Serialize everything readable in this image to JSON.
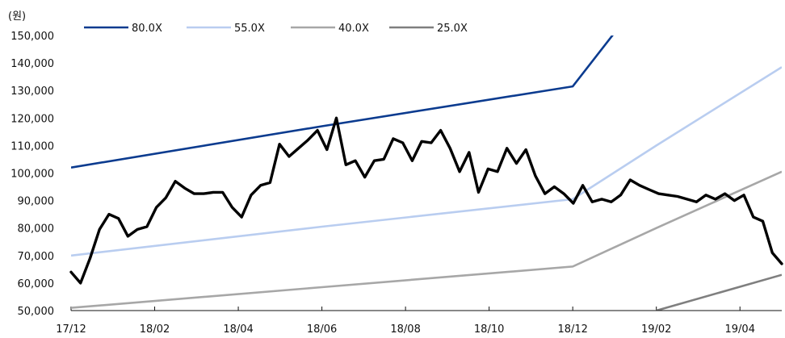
{
  "chart_data": {
    "type": "line",
    "ylabel": "(원)",
    "ylim": [
      50000,
      150000
    ],
    "yticks": [
      "50,000",
      "60,000",
      "70,000",
      "80,000",
      "90,000",
      "100,000",
      "110,000",
      "120,000",
      "130,000",
      "140,000",
      "150,000"
    ],
    "xticks": [
      "17/12",
      "18/02",
      "18/04",
      "18/06",
      "18/08",
      "18/10",
      "18/12",
      "19/02",
      "19/04"
    ],
    "legend_position": "top",
    "series": [
      {
        "name": "80.0X",
        "color": "#0b3b8f",
        "points": [
          [
            "17/12",
            102000
          ],
          [
            "18/06",
            117000
          ],
          [
            "18/12",
            131500
          ],
          [
            "19/01",
            151000
          ]
        ]
      },
      {
        "name": "55.0X",
        "color": "#b9cdf0",
        "points": [
          [
            "17/12",
            70000
          ],
          [
            "18/06",
            80500
          ],
          [
            "18/12",
            90500
          ],
          [
            "19/02",
            110000
          ],
          [
            "19/05",
            138500
          ]
        ]
      },
      {
        "name": "40.0X",
        "color": "#a7a7a7",
        "points": [
          [
            "17/12",
            51000
          ],
          [
            "18/06",
            58500
          ],
          [
            "18/12",
            66000
          ],
          [
            "19/02",
            80000
          ],
          [
            "19/05",
            100500
          ]
        ]
      },
      {
        "name": "25.0X",
        "color": "#7f7f7f",
        "points": [
          [
            "19/02",
            50000
          ],
          [
            "19/05",
            63000
          ]
        ]
      }
    ],
    "price_series": {
      "color": "#000000",
      "x_start": "17/12",
      "x_end": "19/05",
      "values": [
        64000,
        60000,
        69000,
        79500,
        85000,
        83500,
        77000,
        79500,
        80500,
        87500,
        91000,
        97000,
        94500,
        92500,
        92500,
        93000,
        93000,
        87500,
        84000,
        92000,
        95500,
        96500,
        110500,
        106000,
        109000,
        112000,
        115500,
        108500,
        120000,
        103000,
        104500,
        98500,
        104500,
        105000,
        112500,
        111000,
        104500,
        111500,
        111000,
        115500,
        109000,
        100500,
        107500,
        93000,
        101500,
        100500,
        109000,
        103500,
        108500,
        99000,
        92500,
        95000,
        92500,
        89000,
        95500,
        89500,
        90500,
        89500,
        92000,
        97500,
        95500,
        94000,
        92500,
        92000,
        91500,
        90500,
        89500,
        92000,
        90500,
        92500,
        90000,
        92000,
        84000,
        82500,
        71000,
        67000
      ]
    }
  }
}
